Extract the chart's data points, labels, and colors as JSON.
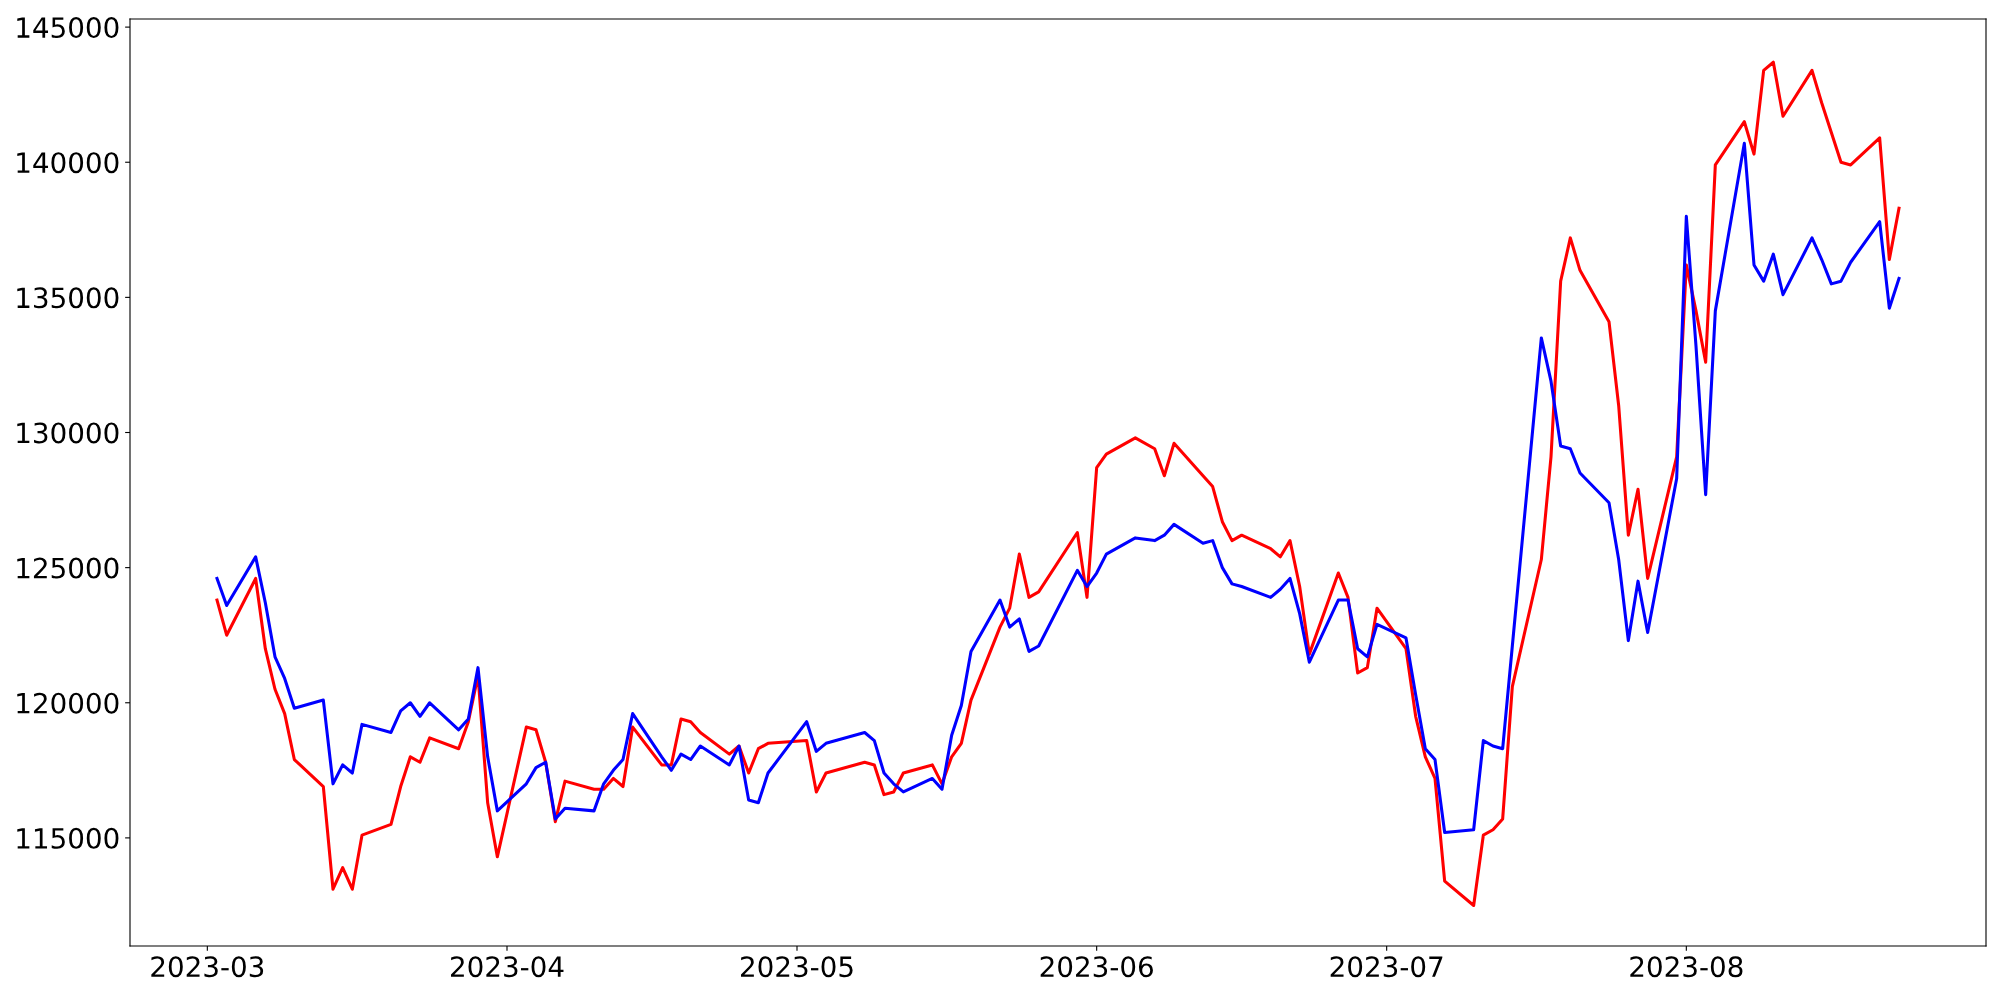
{
  "chart_data": {
    "type": "line",
    "x": [
      "2023-03-02",
      "2023-03-03",
      "2023-03-06",
      "2023-03-07",
      "2023-03-08",
      "2023-03-09",
      "2023-03-10",
      "2023-03-13",
      "2023-03-14",
      "2023-03-15",
      "2023-03-16",
      "2023-03-17",
      "2023-03-20",
      "2023-03-21",
      "2023-03-22",
      "2023-03-23",
      "2023-03-24",
      "2023-03-27",
      "2023-03-28",
      "2023-03-29",
      "2023-03-30",
      "2023-03-31",
      "2023-04-03",
      "2023-04-04",
      "2023-04-05",
      "2023-04-06",
      "2023-04-07",
      "2023-04-10",
      "2023-04-11",
      "2023-04-12",
      "2023-04-13",
      "2023-04-14",
      "2023-04-17",
      "2023-04-18",
      "2023-04-19",
      "2023-04-20",
      "2023-04-21",
      "2023-04-24",
      "2023-04-25",
      "2023-04-26",
      "2023-04-27",
      "2023-04-28",
      "2023-05-02",
      "2023-05-03",
      "2023-05-04",
      "2023-05-08",
      "2023-05-09",
      "2023-05-10",
      "2023-05-11",
      "2023-05-12",
      "2023-05-15",
      "2023-05-16",
      "2023-05-17",
      "2023-05-18",
      "2023-05-19",
      "2023-05-22",
      "2023-05-23",
      "2023-05-24",
      "2023-05-25",
      "2023-05-26",
      "2023-05-30",
      "2023-05-31",
      "2023-06-01",
      "2023-06-02",
      "2023-06-05",
      "2023-06-07",
      "2023-06-08",
      "2023-06-09",
      "2023-06-12",
      "2023-06-13",
      "2023-06-14",
      "2023-06-15",
      "2023-06-16",
      "2023-06-19",
      "2023-06-20",
      "2023-06-21",
      "2023-06-22",
      "2023-06-23",
      "2023-06-26",
      "2023-06-27",
      "2023-06-28",
      "2023-06-29",
      "2023-06-30",
      "2023-07-03",
      "2023-07-04",
      "2023-07-05",
      "2023-07-06",
      "2023-07-07",
      "2023-07-10",
      "2023-07-11",
      "2023-07-12",
      "2023-07-13",
      "2023-07-14",
      "2023-07-17",
      "2023-07-18",
      "2023-07-19",
      "2023-07-20",
      "2023-07-21",
      "2023-07-24",
      "2023-07-25",
      "2023-07-26",
      "2023-07-27",
      "2023-07-28",
      "2023-07-31",
      "2023-08-01",
      "2023-08-02",
      "2023-08-03",
      "2023-08-04",
      "2023-08-07",
      "2023-08-08",
      "2023-08-09",
      "2023-08-10",
      "2023-08-11",
      "2023-08-14",
      "2023-08-15",
      "2023-08-16",
      "2023-08-17",
      "2023-08-18",
      "2023-08-21",
      "2023-08-22",
      "2023-08-23"
    ],
    "series": [
      {
        "color": "#ff0000",
        "values": [
          123800,
          122500,
          124600,
          122000,
          120500,
          119600,
          117900,
          116900,
          113100,
          113900,
          113100,
          115100,
          115500,
          116900,
          118000,
          117800,
          118700,
          118300,
          119300,
          121000,
          116300,
          114300,
          119100,
          119000,
          117800,
          115600,
          117100,
          116800,
          116800,
          117200,
          116900,
          119100,
          117700,
          117700,
          119400,
          119300,
          118900,
          118100,
          118400,
          117400,
          118300,
          118500,
          118600,
          116700,
          117400,
          117800,
          117700,
          116600,
          116700,
          117400,
          117700,
          117000,
          118000,
          118500,
          120100,
          122800,
          123500,
          125500,
          123900,
          124100,
          126300,
          123900,
          128700,
          129200,
          129800,
          129400,
          128400,
          129600,
          128400,
          128000,
          126700,
          126000,
          126200,
          125700,
          125400,
          126000,
          124300,
          121800,
          124800,
          123900,
          121100,
          121300,
          123500,
          122000,
          119500,
          118000,
          117200,
          113400,
          112500,
          115100,
          115300,
          115700,
          120600,
          125300,
          129100,
          135600,
          137200,
          136000,
          134100,
          131000,
          126200,
          127900,
          124600,
          129100,
          136200,
          134500,
          132600,
          139900,
          141500,
          140300,
          143400,
          143700,
          141700,
          143400,
          142200,
          141100,
          140000,
          139900,
          140900,
          136400,
          138300
        ]
      },
      {
        "color": "#0000ff",
        "values": [
          124600,
          123600,
          125400,
          123700,
          121700,
          120900,
          119800,
          120100,
          117000,
          117700,
          117400,
          119200,
          118900,
          119700,
          120000,
          119500,
          120000,
          119000,
          119400,
          121300,
          118000,
          116000,
          117000,
          117600,
          117800,
          115700,
          116100,
          116000,
          117000,
          117500,
          117900,
          119600,
          118000,
          117500,
          118100,
          117900,
          118400,
          117700,
          118400,
          116400,
          116300,
          117400,
          119300,
          118200,
          118500,
          118900,
          118600,
          117400,
          117000,
          116700,
          117200,
          116800,
          118800,
          119900,
          121900,
          123800,
          122800,
          123100,
          121900,
          122100,
          124900,
          124300,
          124800,
          125500,
          126100,
          126000,
          126200,
          126600,
          125900,
          126000,
          125000,
          124400,
          124300,
          123900,
          124200,
          124600,
          123300,
          121500,
          123800,
          123800,
          122000,
          121700,
          122900,
          122400,
          120300,
          118300,
          117900,
          115200,
          115300,
          118600,
          118400,
          118300,
          122100,
          133500,
          131900,
          129500,
          129400,
          128500,
          127400,
          125300,
          122300,
          124500,
          122600,
          128300,
          138000,
          133200,
          127700,
          134500,
          140700,
          136200,
          135600,
          136600,
          135100,
          137200,
          136400,
          135500,
          135600,
          136300,
          137800,
          134600,
          135700
        ]
      }
    ],
    "xlim": [
      "2023-02-21",
      "2023-09-01"
    ],
    "xticks": [
      "2023-03",
      "2023-04",
      "2023-05",
      "2023-06",
      "2023-07",
      "2023-08"
    ],
    "ylim": [
      111000,
      145300
    ],
    "yticks": [
      115000,
      120000,
      125000,
      130000,
      135000,
      140000,
      145000
    ],
    "grid": false,
    "marker": "none",
    "line_style": "solid"
  }
}
